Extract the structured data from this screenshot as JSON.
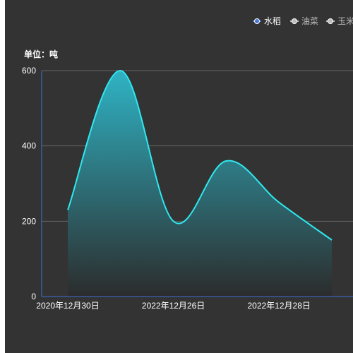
{
  "chart_data": {
    "type": "area",
    "unit_label": "单位：吨",
    "legend": [
      {
        "name": "水稻",
        "active": true
      },
      {
        "name": "油菜",
        "active": false
      },
      {
        "name": "玉米",
        "active": false
      }
    ],
    "x_tick_labels": [
      "2020年12月30日",
      "2022年12月26日",
      "2022年12月28日"
    ],
    "ylim": [
      0,
      600
    ],
    "y_ticks": [
      0,
      200,
      400,
      600
    ],
    "series": [
      {
        "name": "水稻",
        "points": [
          {
            "x": 0,
            "y": 230
          },
          {
            "x": 1,
            "y": 600
          },
          {
            "x": 2,
            "y": 200
          },
          {
            "x": 3,
            "y": 360
          },
          {
            "x": 4,
            "y": 250
          },
          {
            "x": 5,
            "y": 150
          }
        ]
      }
    ],
    "x_tick_positions": [
      0,
      2,
      4
    ],
    "grid": true
  },
  "colors": {
    "background": "#333333",
    "line": "#2ee8f0",
    "area_top": "#2fb3c4",
    "area_bottom": "#2c2c2c",
    "legend_active": "#4a78d6",
    "legend_inactive": "#bbbbbb",
    "axis_line": "#3b6fd8",
    "grid": "#666666"
  }
}
